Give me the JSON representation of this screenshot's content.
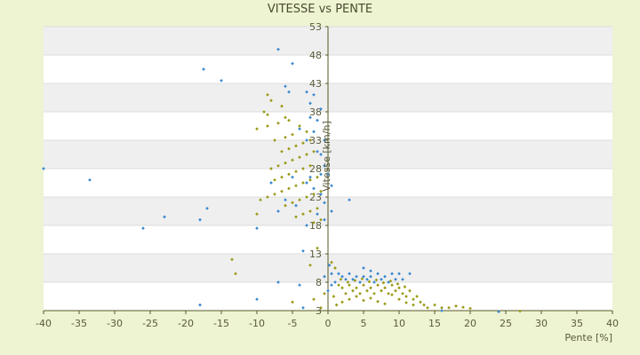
{
  "chart_data": {
    "type": "scatter",
    "title": "VITESSE vs PENTE",
    "xlabel": "Pente [%]",
    "ylabel": "Vitesse [km/h]",
    "xlim": [
      -40,
      40
    ],
    "ylim": [
      3,
      53
    ],
    "x_ticks": [
      -40,
      -35,
      -30,
      -25,
      -20,
      -15,
      -10,
      -5,
      0,
      5,
      10,
      15,
      20,
      25,
      30,
      35,
      40
    ],
    "y_ticks": [
      3,
      8,
      13,
      18,
      23,
      28,
      33,
      38,
      43,
      48,
      53
    ],
    "grid": true,
    "colors": {
      "background": "#eef3d2",
      "plot_band_light": "#ffffff",
      "plot_band_dark": "#efefef",
      "axis": "#5a5a2a",
      "series_1": "#3a88d0",
      "series_2": "#9a9a18"
    },
    "series": [
      {
        "values": [
          [
            -7,
            49
          ],
          [
            -5,
            46.5
          ],
          [
            -17.5,
            45.5
          ],
          [
            -15,
            43.5
          ],
          [
            -6,
            42.5
          ],
          [
            -5.5,
            41.5
          ],
          [
            -3,
            41.5
          ],
          [
            -2,
            41
          ],
          [
            -2.5,
            39.5
          ],
          [
            -1,
            38.5
          ],
          [
            -40,
            28
          ],
          [
            -33.5,
            26
          ],
          [
            -17,
            21
          ],
          [
            -23,
            19.5
          ],
          [
            -26,
            17.5
          ],
          [
            -18,
            19
          ],
          [
            -10,
            17.5
          ],
          [
            -7,
            20.5
          ],
          [
            -8,
            25.5
          ],
          [
            -5,
            26.5
          ],
          [
            -3,
            25.5
          ],
          [
            -2,
            24.5
          ],
          [
            -1,
            23.5
          ],
          [
            -0.5,
            22
          ],
          [
            0,
            27
          ],
          [
            -1,
            30.5
          ],
          [
            -0.5,
            33
          ],
          [
            -2,
            34.5
          ],
          [
            -3,
            33
          ],
          [
            -1.5,
            31
          ],
          [
            3,
            22.5
          ],
          [
            -0.5,
            19
          ],
          [
            -1.5,
            20
          ],
          [
            -3,
            18
          ],
          [
            -7,
            8
          ],
          [
            -10,
            5
          ],
          [
            -18,
            4
          ],
          [
            -4,
            7.5
          ],
          [
            -3.5,
            3.5
          ],
          [
            -0.5,
            9
          ],
          [
            0.5,
            9.5
          ],
          [
            1,
            8
          ],
          [
            1.5,
            9.5
          ],
          [
            2,
            9
          ],
          [
            2.5,
            8.5
          ],
          [
            3,
            9.5
          ],
          [
            3.5,
            8.5
          ],
          [
            4,
            9
          ],
          [
            4.5,
            8
          ],
          [
            5,
            9
          ],
          [
            5.5,
            8.5
          ],
          [
            6,
            9
          ],
          [
            6.5,
            8
          ],
          [
            7,
            9.5
          ],
          [
            7.5,
            8.5
          ],
          [
            8,
            9
          ],
          [
            8.5,
            8
          ],
          [
            9,
            9.5
          ],
          [
            10,
            9.5
          ],
          [
            11.5,
            9.5
          ],
          [
            10.5,
            8.5
          ],
          [
            9.5,
            8.5
          ],
          [
            6,
            10
          ],
          [
            5,
            10.5
          ],
          [
            0.5,
            7.5
          ],
          [
            0,
            6.5
          ],
          [
            0.2,
            11
          ],
          [
            24,
            2.8
          ],
          [
            16,
            3
          ],
          [
            -2.5,
            37
          ],
          [
            -1.5,
            36.5
          ],
          [
            -4,
            35
          ],
          [
            -1,
            27
          ],
          [
            -0.5,
            28.5
          ],
          [
            -2.5,
            26.5
          ],
          [
            -4.5,
            21.5
          ],
          [
            -6,
            22.5
          ],
          [
            0.5,
            25
          ],
          [
            0.5,
            20.5
          ],
          [
            -3.5,
            13.5
          ]
        ]
      },
      {
        "values": [
          [
            -8.5,
            41
          ],
          [
            -8,
            40
          ],
          [
            -6.5,
            39
          ],
          [
            -9,
            38
          ],
          [
            -8.5,
            37.5
          ],
          [
            -6,
            37
          ],
          [
            -5.5,
            36.5
          ],
          [
            -7,
            36
          ],
          [
            -8.5,
            35.5
          ],
          [
            -10,
            35
          ],
          [
            -4,
            35.5
          ],
          [
            -3,
            34.5
          ],
          [
            -5,
            34
          ],
          [
            -6,
            33.5
          ],
          [
            -7.5,
            33
          ],
          [
            -2.5,
            33
          ],
          [
            -3.5,
            32.5
          ],
          [
            -4.5,
            32
          ],
          [
            -5.5,
            31.5
          ],
          [
            -6.5,
            31
          ],
          [
            -2,
            31
          ],
          [
            -3,
            30.5
          ],
          [
            -4,
            30
          ],
          [
            -5,
            29.5
          ],
          [
            -6,
            29
          ],
          [
            -7,
            28.5
          ],
          [
            -8,
            28
          ],
          [
            -2.5,
            28.5
          ],
          [
            -3.5,
            28
          ],
          [
            -4.5,
            27.5
          ],
          [
            -5.5,
            27
          ],
          [
            -6.5,
            26.5
          ],
          [
            -7.5,
            26
          ],
          [
            -1.5,
            26.5
          ],
          [
            -2.5,
            26
          ],
          [
            -3.5,
            25.5
          ],
          [
            -4.5,
            25
          ],
          [
            -5.5,
            24.5
          ],
          [
            -6.5,
            24
          ],
          [
            -7.5,
            23.5
          ],
          [
            -8.5,
            23
          ],
          [
            -9.5,
            22.5
          ],
          [
            -1,
            24
          ],
          [
            -2,
            23.5
          ],
          [
            -3,
            23
          ],
          [
            -4,
            22.5
          ],
          [
            -5,
            22
          ],
          [
            -6,
            21.5
          ],
          [
            -1.5,
            21
          ],
          [
            -2.5,
            20.5
          ],
          [
            -3.5,
            20
          ],
          [
            -4.5,
            19.5
          ],
          [
            -1,
            19
          ],
          [
            -2,
            18.5
          ],
          [
            -10,
            20
          ],
          [
            -13.5,
            12
          ],
          [
            -13,
            9.5
          ],
          [
            -1.5,
            14
          ],
          [
            -2.5,
            11
          ],
          [
            -0.5,
            6
          ],
          [
            -2,
            5
          ],
          [
            -5,
            4.5
          ],
          [
            -1,
            3.5
          ],
          [
            0.5,
            11.5
          ],
          [
            1,
            10.5
          ],
          [
            1.5,
            7.5
          ],
          [
            2,
            7
          ],
          [
            2.5,
            6
          ],
          [
            3,
            7.5
          ],
          [
            3.5,
            6.5
          ],
          [
            4,
            7
          ],
          [
            4.5,
            6
          ],
          [
            5,
            7.5
          ],
          [
            5.5,
            6.5
          ],
          [
            6,
            7
          ],
          [
            6.5,
            6
          ],
          [
            7,
            7.5
          ],
          [
            7.5,
            6.5
          ],
          [
            8,
            7
          ],
          [
            8.5,
            6
          ],
          [
            9,
            7.5
          ],
          [
            9.5,
            6.5
          ],
          [
            10,
            7
          ],
          [
            10.5,
            6
          ],
          [
            11,
            5.5
          ],
          [
            11.5,
            6.5
          ],
          [
            12,
            5
          ],
          [
            12.5,
            5.5
          ],
          [
            13,
            4.5
          ],
          [
            13.5,
            4
          ],
          [
            14,
            3.5
          ],
          [
            15,
            4
          ],
          [
            16,
            3.5
          ],
          [
            17,
            3.5
          ],
          [
            18,
            3.8
          ],
          [
            19,
            3.6
          ],
          [
            20,
            3.4
          ],
          [
            27,
            2.9
          ],
          [
            2,
            4.5
          ],
          [
            3,
            5
          ],
          [
            4,
            5.5
          ],
          [
            5,
            4.8
          ],
          [
            6,
            5.2
          ],
          [
            7,
            4.6
          ],
          [
            8,
            4.2
          ],
          [
            9,
            5.8
          ],
          [
            10,
            5
          ],
          [
            11,
            4.4
          ],
          [
            12,
            4
          ],
          [
            1.2,
            4
          ],
          [
            0.8,
            5.5
          ],
          [
            1.8,
            8.5
          ],
          [
            2.8,
            8
          ],
          [
            3.8,
            8.3
          ],
          [
            4.8,
            8.6
          ],
          [
            5.8,
            8.1
          ],
          [
            6.8,
            8.4
          ],
          [
            7.8,
            7.9
          ],
          [
            8.8,
            8.2
          ],
          [
            9.8,
            7.7
          ],
          [
            10.8,
            7.2
          ]
        ]
      }
    ]
  }
}
